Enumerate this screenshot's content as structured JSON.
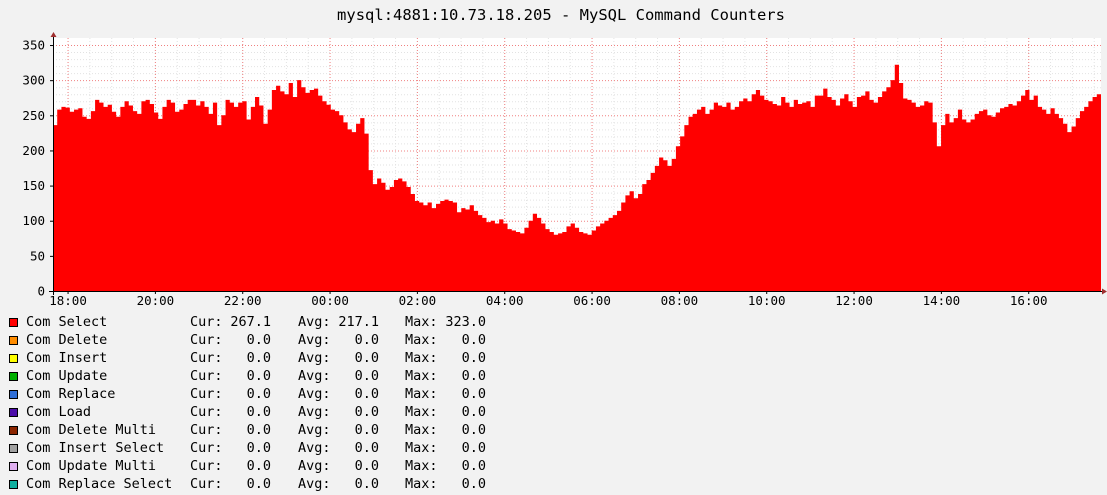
{
  "chart_data": {
    "type": "area",
    "title": "mysql:4881:10.73.18.205 - MySQL Command Counters",
    "xlabel": "",
    "ylabel": "",
    "ylim": [
      0,
      360
    ],
    "y_ticks": [
      0,
      50,
      100,
      150,
      200,
      250,
      300,
      350
    ],
    "x_ticks": [
      "18:00",
      "20:00",
      "22:00",
      "00:00",
      "02:00",
      "04:00",
      "06:00",
      "08:00",
      "10:00",
      "12:00",
      "14:00",
      "16:00"
    ],
    "x_start_time": "17:40",
    "x_end_time": "17:40",
    "grid": true,
    "legend_placement": "bottom",
    "series": [
      {
        "name": "Com Select",
        "color": "#ff0000",
        "values": [
          236,
          258,
          262,
          261,
          255,
          258,
          260,
          248,
          245,
          256,
          272,
          268,
          262,
          265,
          255,
          248,
          262,
          270,
          264,
          256,
          252,
          270,
          272,
          266,
          254,
          245,
          262,
          272,
          268,
          255,
          258,
          266,
          272,
          272,
          264,
          270,
          262,
          252,
          268,
          236,
          250,
          272,
          268,
          262,
          268,
          270,
          244,
          262,
          276,
          264,
          238,
          258,
          286,
          292,
          284,
          280,
          296,
          276,
          300,
          290,
          282,
          286,
          288,
          278,
          270,
          265,
          258,
          256,
          250,
          240,
          230,
          226,
          238,
          246,
          224,
          172,
          152,
          160,
          154,
          144,
          148,
          158,
          160,
          156,
          148,
          138,
          128,
          126,
          122,
          126,
          118,
          124,
          128,
          130,
          128,
          126,
          112,
          118,
          116,
          122,
          114,
          108,
          104,
          98,
          100,
          96,
          102,
          96,
          88,
          86,
          84,
          82,
          90,
          100,
          110,
          104,
          96,
          88,
          84,
          80,
          82,
          84,
          92,
          96,
          90,
          84,
          82,
          80,
          86,
          92,
          96,
          100,
          104,
          108,
          114,
          126,
          136,
          142,
          132,
          138,
          152,
          158,
          168,
          178,
          190,
          186,
          178,
          188,
          206,
          220,
          236,
          248,
          252,
          258,
          262,
          252,
          258,
          268,
          264,
          262,
          268,
          258,
          262,
          270,
          274,
          270,
          280,
          286,
          278,
          272,
          270,
          266,
          264,
          276,
          268,
          262,
          272,
          266,
          268,
          270,
          262,
          278,
          278,
          288,
          276,
          272,
          264,
          274,
          280,
          270,
          262,
          276,
          278,
          284,
          272,
          268,
          276,
          284,
          290,
          300,
          322,
          296,
          274,
          272,
          268,
          262,
          264,
          270,
          268,
          240,
          206,
          236,
          252,
          240,
          246,
          258,
          244,
          240,
          244,
          252,
          256,
          258,
          250,
          248,
          254,
          260,
          262,
          266,
          264,
          270,
          278,
          286,
          272,
          278,
          262,
          258,
          252,
          260,
          252,
          246,
          238,
          226,
          234,
          246,
          256,
          262,
          270,
          276,
          280
        ]
      }
    ]
  },
  "legend": [
    {
      "name": "Com Select",
      "color": "#ff0000",
      "cur": "267.1",
      "avg": "217.1",
      "max": "323.0"
    },
    {
      "name": "Com Delete",
      "color": "#ff8c00",
      "cur": "0.0",
      "avg": "0.0",
      "max": "0.0"
    },
    {
      "name": "Com Insert",
      "color": "#ffff00",
      "cur": "0.0",
      "avg": "0.0",
      "max": "0.0"
    },
    {
      "name": "Com Update",
      "color": "#00b000",
      "cur": "0.0",
      "avg": "0.0",
      "max": "0.0"
    },
    {
      "name": "Com Replace",
      "color": "#2f6fd8",
      "cur": "0.0",
      "avg": "0.0",
      "max": "0.0"
    },
    {
      "name": "Com Load",
      "color": "#4b0ca8",
      "cur": "0.0",
      "avg": "0.0",
      "max": "0.0"
    },
    {
      "name": "Com Delete Multi",
      "color": "#8b2500",
      "cur": "0.0",
      "avg": "0.0",
      "max": "0.0"
    },
    {
      "name": "Com Insert Select",
      "color": "#a0a0a0",
      "cur": "0.0",
      "avg": "0.0",
      "max": "0.0"
    },
    {
      "name": "Com Update Multi",
      "color": "#e0b0f0",
      "cur": "0.0",
      "avg": "0.0",
      "max": "0.0"
    },
    {
      "name": "Com Replace Select",
      "color": "#10b0a0",
      "cur": "0.0",
      "avg": "0.0",
      "max": "0.0"
    }
  ],
  "labels": {
    "cur": "Cur:",
    "avg": "Avg:",
    "max": "Max:"
  }
}
